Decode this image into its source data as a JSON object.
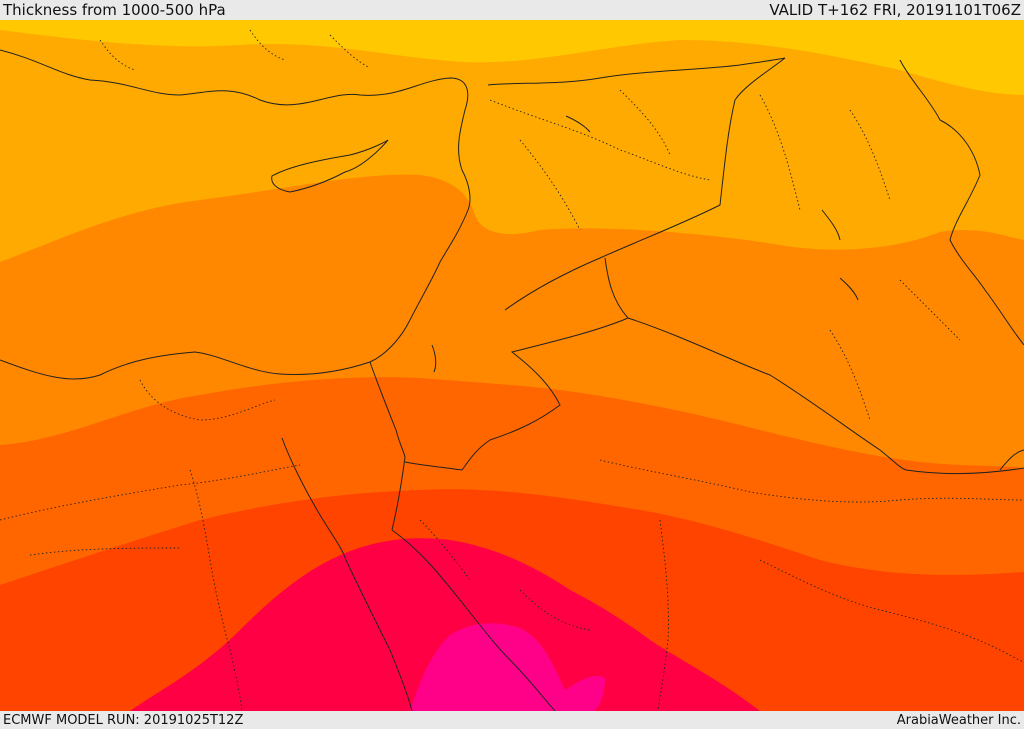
{
  "header": {
    "title": "Thickness from 1000-500 hPa",
    "valid": "VALID T+162 FRI, 20191101T06Z"
  },
  "footer": {
    "model_run": "ECMWF MODEL RUN: 20191025T12Z",
    "credit": "ArabiaWeather Inc."
  },
  "map": {
    "field": "1000-500 hPa thickness",
    "region": "Eastern Mediterranean / Levant / Egypt / Iraq",
    "band_colors": [
      "#ffc800",
      "#ffaa00",
      "#ff8800",
      "#ff6600",
      "#ff4400",
      "#ff0044",
      "#ff0088"
    ],
    "sea_color": "#ff8800",
    "border_color": "#222222"
  }
}
